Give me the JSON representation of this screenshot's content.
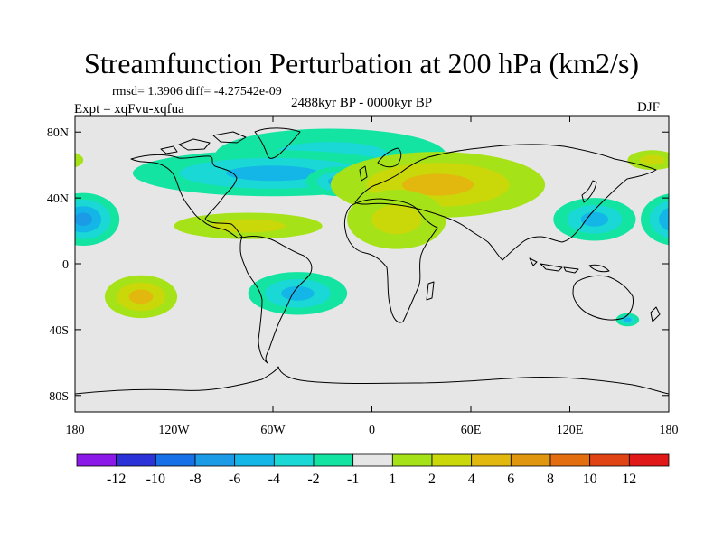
{
  "chart_data": {
    "type": "heatmap",
    "title": "Streamfunction Perturbation at 200 hPa (km2/s)",
    "stats": "rmsd= 1.3906 diff= -4.27542e-09",
    "experiment": "Expt = xqFvu-xqfua",
    "period": "2488kyr BP - 0000kyr BP",
    "season": "DJF",
    "y_ticks": [
      {
        "label": "80N",
        "lat": 80
      },
      {
        "label": "40N",
        "lat": 40
      },
      {
        "label": "0",
        "lat": 0
      },
      {
        "label": "40S",
        "lat": -40
      },
      {
        "label": "80S",
        "lat": -80
      }
    ],
    "x_ticks": [
      {
        "label": "180",
        "lon": -180
      },
      {
        "label": "120W",
        "lon": -120
      },
      {
        "label": "60W",
        "lon": -60
      },
      {
        "label": "0",
        "lon": 0
      },
      {
        "label": "60E",
        "lon": 60
      },
      {
        "label": "120E",
        "lon": 120
      },
      {
        "label": "180",
        "lon": 180
      }
    ],
    "xlim": [
      -180,
      180
    ],
    "ylim": [
      -90,
      90
    ],
    "colorbar": {
      "labels": [
        "-12",
        "-10",
        "-8",
        "-6",
        "-4",
        "-2",
        "-1",
        "1",
        "2",
        "4",
        "6",
        "8",
        "10",
        "12"
      ],
      "colors": [
        "#8b1ae8",
        "#2b32d8",
        "#1770e8",
        "#1b9ae6",
        "#14b6e8",
        "#19d8d6",
        "#14e4a2",
        "#e6e6e6",
        "#a6e218",
        "#cad80a",
        "#e2b80e",
        "#e0960e",
        "#e26e10",
        "#e04414",
        "#e01818"
      ]
    },
    "features": [
      {
        "name": "arctic-negative",
        "value": -2,
        "lon": -25,
        "lat": 66,
        "rlon": 70,
        "rlat": 16
      },
      {
        "name": "north-atlantic-low",
        "value": -4,
        "lon": -60,
        "lat": 55,
        "rlon": 85,
        "rlat": 14
      },
      {
        "name": "atlantic-trough",
        "value": -4,
        "lon": -20,
        "lat": 50,
        "rlon": 20,
        "rlat": 9
      },
      {
        "name": "north-pacific-low",
        "value": -6,
        "lon": -175,
        "lat": 27,
        "rlon": 22,
        "rlat": 16
      },
      {
        "name": "west-pacific-low",
        "value": -4,
        "lon": 135,
        "lat": 27,
        "rlon": 25,
        "rlat": 13
      },
      {
        "name": "east-pacific-high",
        "value": 2,
        "lon": 170,
        "lat": 63,
        "rlon": 15,
        "rlat": 6
      },
      {
        "name": "eurasian-high",
        "value": 4,
        "lon": 40,
        "lat": 48,
        "rlon": 65,
        "rlat": 20
      },
      {
        "name": "africa-ridge",
        "value": 2,
        "lon": 15,
        "lat": 27,
        "rlon": 30,
        "rlat": 18
      },
      {
        "name": "subtropical-atlantic",
        "value": 2,
        "lon": -75,
        "lat": 23,
        "rlon": 45,
        "rlat": 8
      },
      {
        "name": "south-pacific-high",
        "value": 4,
        "lon": -140,
        "lat": -20,
        "rlon": 22,
        "rlat": 13
      },
      {
        "name": "south-america-low",
        "value": -4,
        "lon": -45,
        "lat": -18,
        "rlon": 30,
        "rlat": 13
      },
      {
        "name": "tasman-low",
        "value": -4,
        "lon": 155,
        "lat": -34,
        "rlon": 7,
        "rlat": 4
      }
    ]
  }
}
